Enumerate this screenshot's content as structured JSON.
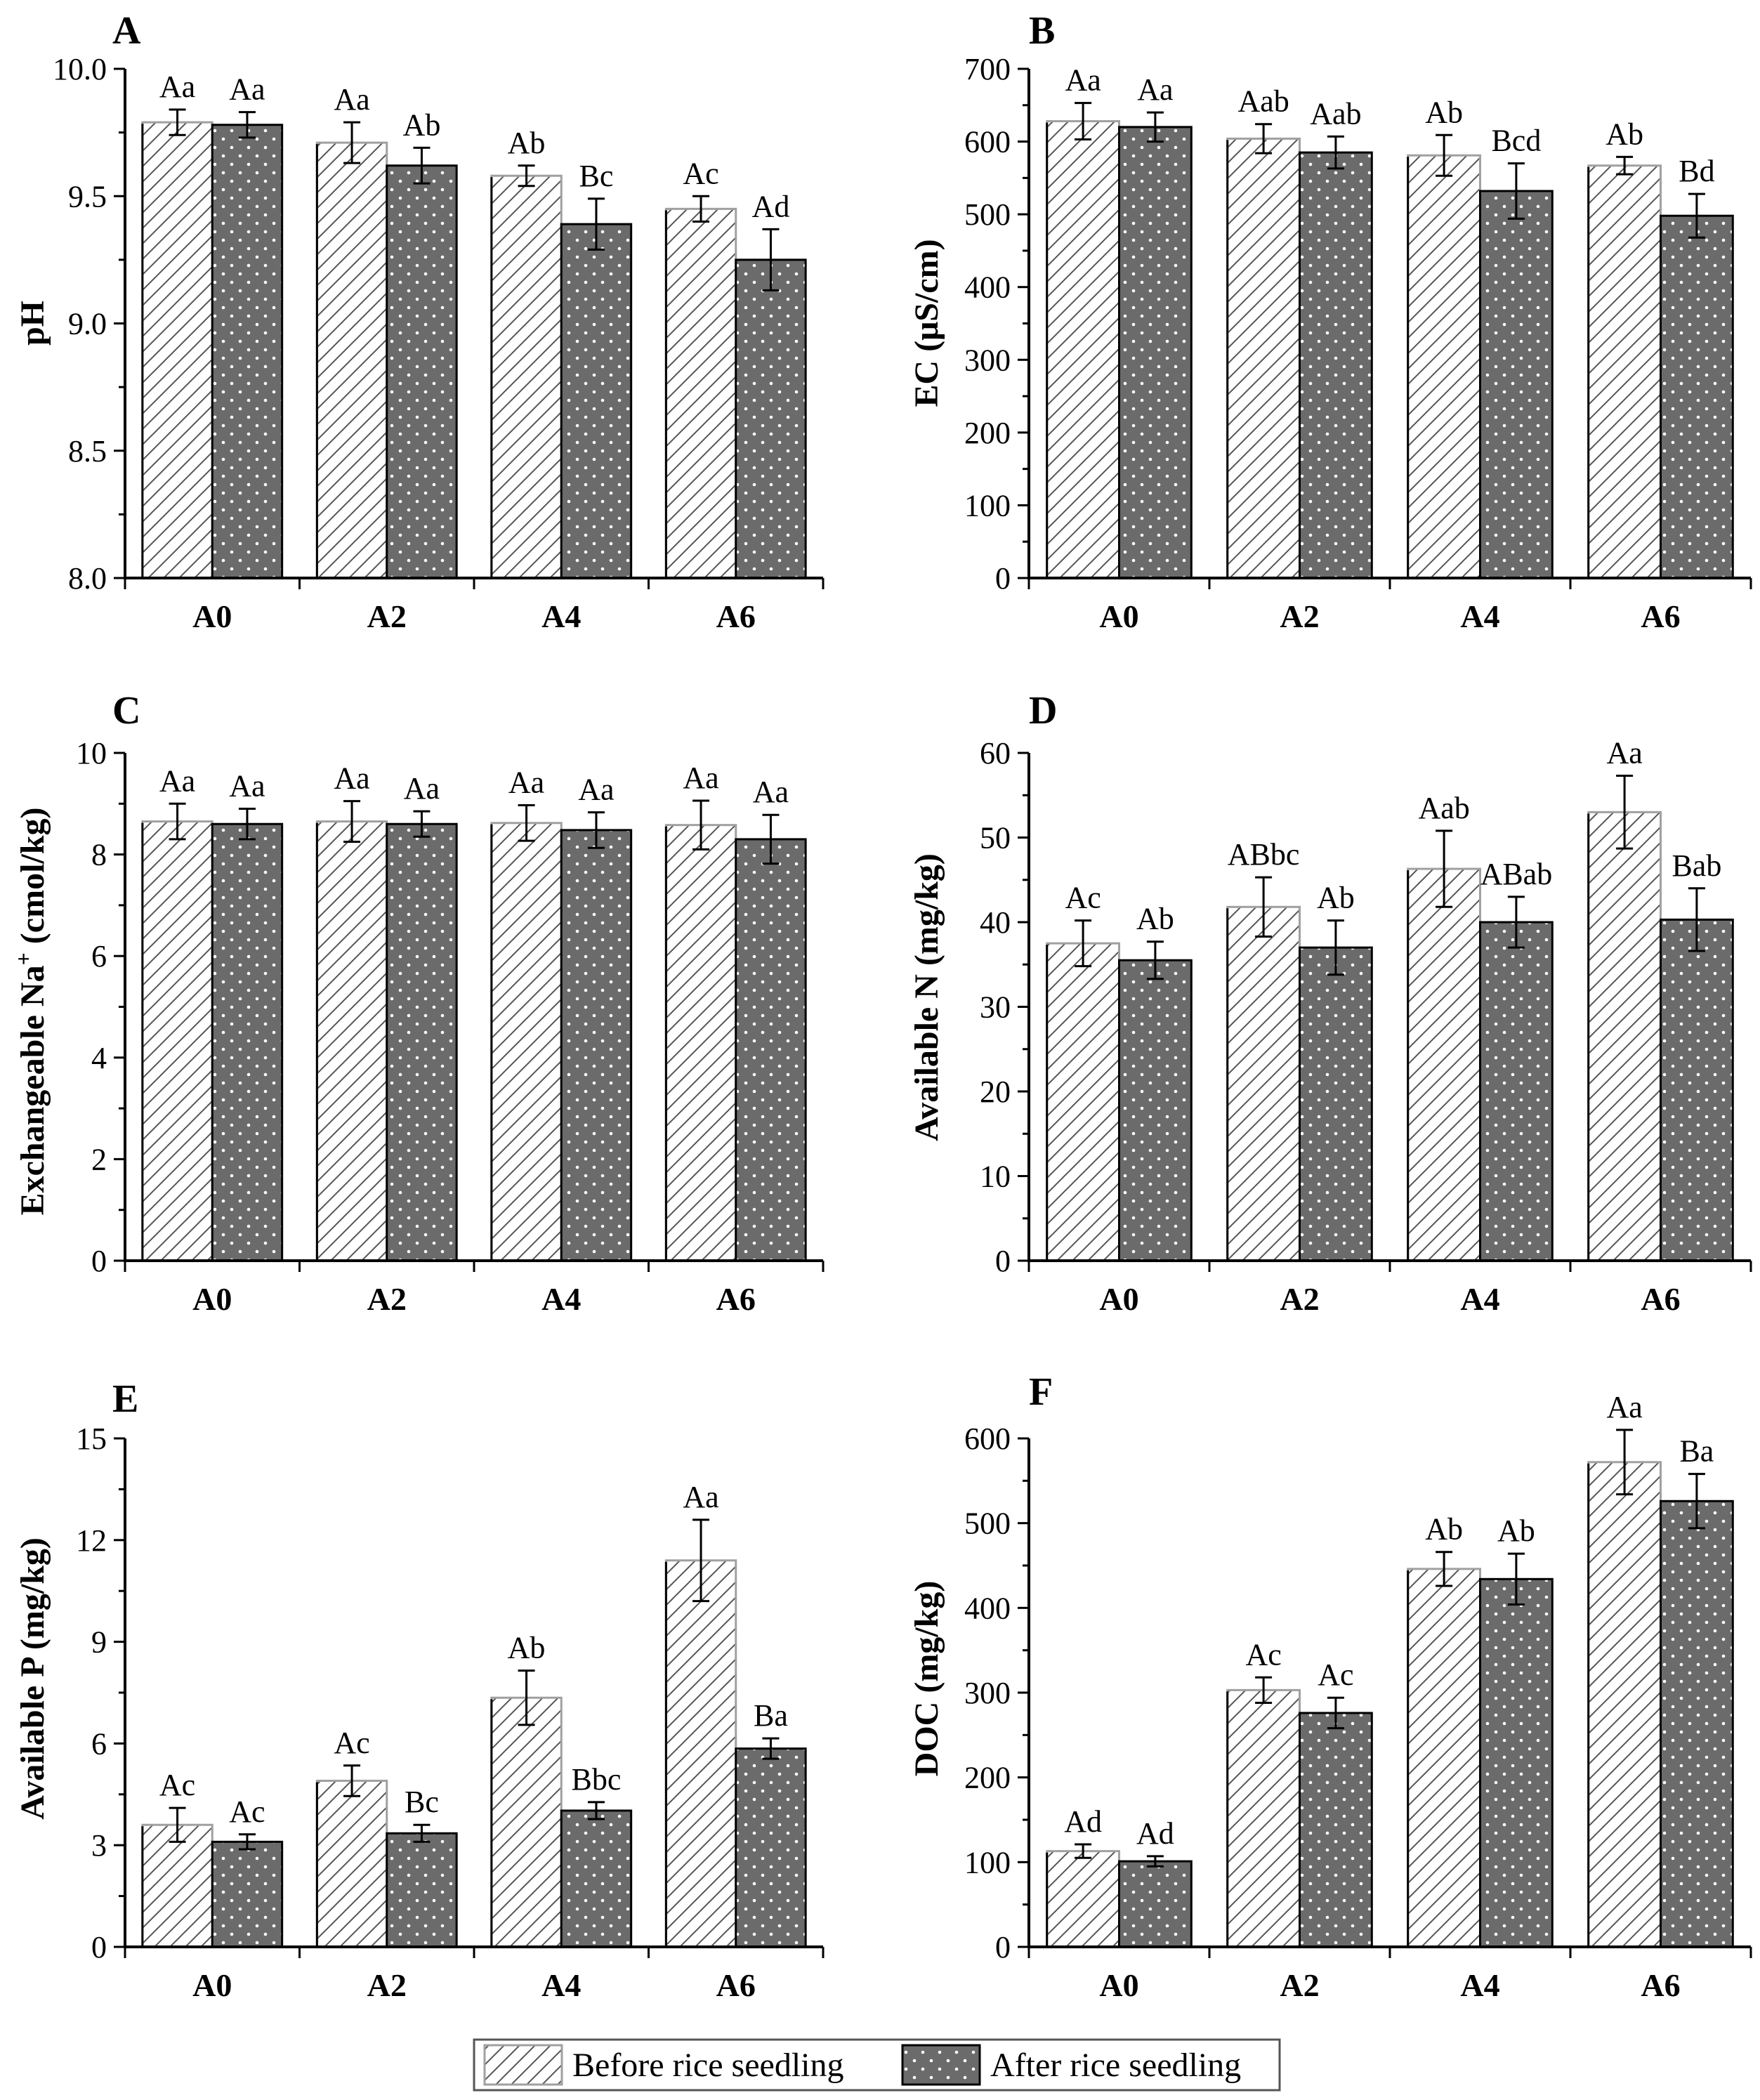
{
  "colors": {
    "before_fill": "#ffffff",
    "before_hatch": "#555555",
    "before_edge_highlight": "#a0a0a0",
    "after_fill": "#6b6b6b",
    "after_dots": "#ffffff",
    "axis": "#000000"
  },
  "legend": {
    "before_label": "Before rice seedling",
    "after_label": "After rice seedling"
  },
  "chart_data": [
    {
      "panel_letter": "A",
      "type": "bar",
      "ylabel": "pH",
      "ylim": [
        8.0,
        10.0
      ],
      "yticks": [
        "8.0",
        "8.5",
        "9.0",
        "9.5",
        "10.0"
      ],
      "tick_values": [
        8.0,
        8.5,
        9.0,
        9.5,
        10.0
      ],
      "categories": [
        "A0",
        "A2",
        "A4",
        "A6"
      ],
      "series": [
        {
          "name": "Before rice seedling",
          "values": [
            9.79,
            9.71,
            9.58,
            9.45
          ],
          "errors": [
            0.05,
            0.08,
            0.04,
            0.05
          ],
          "letters": [
            "Aa",
            "Aa",
            "Ab",
            "Ac"
          ]
        },
        {
          "name": "After rice seedling",
          "values": [
            9.78,
            9.62,
            9.39,
            9.25
          ],
          "errors": [
            0.05,
            0.07,
            0.1,
            0.12
          ],
          "letters": [
            "Aa",
            "Ab",
            "Bc",
            "Ad"
          ]
        }
      ]
    },
    {
      "panel_letter": "B",
      "type": "bar",
      "ylabel": "EC (μS/cm)",
      "ylim": [
        0,
        700
      ],
      "yticks": [
        "0",
        "100",
        "200",
        "300",
        "400",
        "500",
        "600",
        "700"
      ],
      "tick_values": [
        0,
        100,
        200,
        300,
        400,
        500,
        600,
        700
      ],
      "categories": [
        "A0",
        "A2",
        "A4",
        "A6"
      ],
      "series": [
        {
          "name": "Before rice seedling",
          "values": [
            628,
            604,
            581,
            567
          ],
          "errors": [
            25,
            20,
            28,
            12
          ],
          "letters": [
            "Aa",
            "Aab",
            "Ab",
            "Ab"
          ]
        },
        {
          "name": "After rice seedling",
          "values": [
            620,
            585,
            532,
            498
          ],
          "errors": [
            20,
            22,
            38,
            30
          ],
          "letters": [
            "Aa",
            "Aab",
            "Bcd",
            "Bd"
          ]
        }
      ]
    },
    {
      "panel_letter": "C",
      "type": "bar",
      "ylabel_main": "Exchangeable Na",
      "ylabel_sup": "+",
      "ylabel_rest": " (cmol/kg)",
      "ylim": [
        0,
        10
      ],
      "yticks": [
        "0",
        "2",
        "4",
        "6",
        "8",
        "10"
      ],
      "tick_values": [
        0,
        2,
        4,
        6,
        8,
        10
      ],
      "categories": [
        "A0",
        "A2",
        "A4",
        "A6"
      ],
      "series": [
        {
          "name": "Before rice seedling",
          "values": [
            8.65,
            8.65,
            8.62,
            8.58
          ],
          "errors": [
            0.35,
            0.4,
            0.35,
            0.48
          ],
          "letters": [
            "Aa",
            "Aa",
            "Aa",
            "Aa"
          ]
        },
        {
          "name": "After rice seedling",
          "values": [
            8.6,
            8.6,
            8.48,
            8.3
          ],
          "errors": [
            0.3,
            0.25,
            0.35,
            0.48
          ],
          "letters": [
            "Aa",
            "Aa",
            "Aa",
            "Aa"
          ]
        }
      ]
    },
    {
      "panel_letter": "D",
      "type": "bar",
      "ylabel": "Available N (mg/kg)",
      "ylim": [
        0,
        60
      ],
      "yticks": [
        "0",
        "10",
        "20",
        "30",
        "40",
        "50",
        "60"
      ],
      "tick_values": [
        0,
        10,
        20,
        30,
        40,
        50,
        60
      ],
      "categories": [
        "A0",
        "A2",
        "A4",
        "A6"
      ],
      "series": [
        {
          "name": "Before rice seedling",
          "values": [
            37.5,
            41.8,
            46.3,
            53.0
          ],
          "errors": [
            2.7,
            3.5,
            4.5,
            4.3
          ],
          "letters": [
            "Ac",
            "ABbc",
            "Aab",
            "Aa"
          ]
        },
        {
          "name": "After rice seedling",
          "values": [
            35.5,
            37.0,
            40.0,
            40.3
          ],
          "errors": [
            2.2,
            3.2,
            3.0,
            3.7
          ],
          "letters": [
            "Ab",
            "Ab",
            "ABab",
            "Bab"
          ]
        }
      ]
    },
    {
      "panel_letter": "E",
      "type": "bar",
      "ylabel": "Available P (mg/kg)",
      "ylim": [
        0,
        15
      ],
      "yticks": [
        "0",
        "3",
        "6",
        "9",
        "12",
        "15"
      ],
      "tick_values": [
        0,
        3,
        6,
        9,
        12,
        15
      ],
      "categories": [
        "A0",
        "A2",
        "A4",
        "A6"
      ],
      "series": [
        {
          "name": "Before rice seedling",
          "values": [
            3.6,
            4.9,
            7.35,
            11.4
          ],
          "errors": [
            0.5,
            0.45,
            0.8,
            1.2
          ],
          "letters": [
            "Ac",
            "Ac",
            "Ab",
            "Aa"
          ]
        },
        {
          "name": "After rice seedling",
          "values": [
            3.1,
            3.35,
            4.02,
            5.85
          ],
          "errors": [
            0.22,
            0.25,
            0.25,
            0.3
          ],
          "letters": [
            "Ac",
            "Bc",
            "Bbc",
            "Ba"
          ]
        }
      ]
    },
    {
      "panel_letter": "F",
      "type": "bar",
      "ylabel": "DOC (mg/kg)",
      "ylim": [
        0,
        600
      ],
      "yticks": [
        "0",
        "100",
        "200",
        "300",
        "400",
        "500",
        "600"
      ],
      "tick_values": [
        0,
        100,
        200,
        300,
        400,
        500,
        600
      ],
      "categories": [
        "A0",
        "A2",
        "A4",
        "A6"
      ],
      "series": [
        {
          "name": "Before rice seedling",
          "values": [
            113,
            303,
            446,
            572
          ],
          "errors": [
            8,
            15,
            20,
            38
          ],
          "letters": [
            "Ad",
            "Ac",
            "Ab",
            "Aa"
          ]
        },
        {
          "name": "After rice seedling",
          "values": [
            101,
            276,
            434,
            526
          ],
          "errors": [
            6,
            18,
            30,
            32
          ],
          "letters": [
            "Ad",
            "Ac",
            "Ab",
            "Ba"
          ]
        }
      ]
    }
  ]
}
